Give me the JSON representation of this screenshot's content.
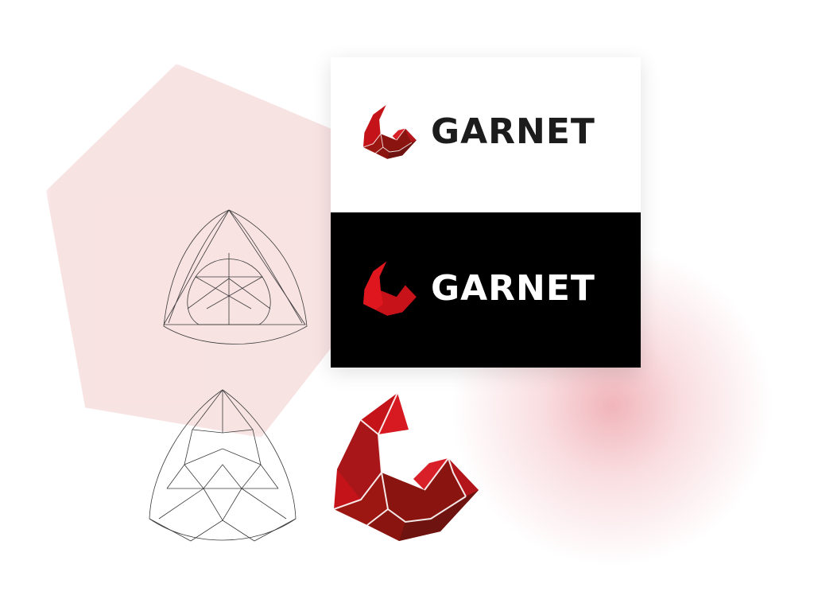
{
  "brand": {
    "name_light": "GARNET",
    "name_dark": "GARNET",
    "colors": {
      "primary_red": "#d0141b",
      "dark_red": "#7a1612",
      "mid_red": "#a51a14",
      "text_dark": "#1c1c1c",
      "background_dark": "#000000",
      "hexagon_tint": "#f7dede"
    }
  },
  "elements": {
    "construction_sketch_1": "garnet-outline-icon",
    "construction_sketch_2": "garnet-facets-icon",
    "logo_mark": "garnet-g-icon"
  }
}
